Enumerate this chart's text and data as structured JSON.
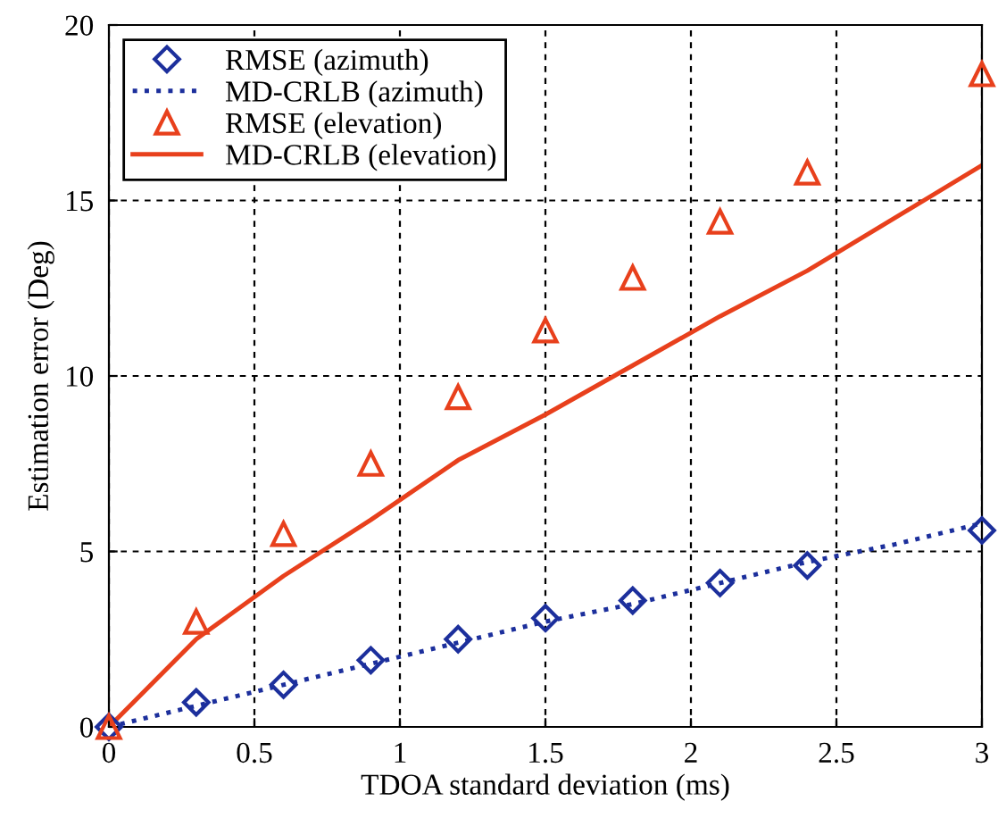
{
  "chart_data": {
    "type": "line",
    "xlabel": "TDOA standard deviation (ms)",
    "ylabel": "Estimation error (Deg)",
    "xlim": [
      0,
      3
    ],
    "ylim": [
      0,
      20
    ],
    "xticks": [
      0,
      0.5,
      1,
      1.5,
      2,
      2.5,
      3
    ],
    "yticks": [
      0,
      5,
      10,
      15,
      20
    ],
    "grid": true,
    "legend": "top left",
    "series": [
      {
        "name": "RMSE (azimuth)",
        "type": "scatter",
        "marker": "diamond",
        "color": "#1c2f9c",
        "x": [
          0,
          0.3,
          0.6,
          0.9,
          1.2,
          1.5,
          1.8,
          2.1,
          2.4,
          3
        ],
        "values": [
          0,
          0.7,
          1.2,
          1.9,
          2.5,
          3.1,
          3.6,
          4.1,
          4.6,
          5.6
        ]
      },
      {
        "name": "MD-CRLB (azimuth)",
        "line_style": "dotted",
        "color": "#1c2f9c",
        "x": [
          0,
          0.3,
          0.6,
          0.9,
          1.2,
          1.5,
          1.8,
          2.1,
          2.4,
          2.7,
          3
        ],
        "values": [
          0,
          0.6,
          1.2,
          1.8,
          2.4,
          3.0,
          3.5,
          4.1,
          4.7,
          5.2,
          5.8
        ]
      },
      {
        "name": "RMSE (elevation)",
        "type": "scatter",
        "marker": "triangle",
        "color": "#e8401c",
        "x": [
          0,
          0.3,
          0.6,
          0.9,
          1.2,
          1.5,
          1.8,
          2.1,
          2.4,
          3
        ],
        "values": [
          0,
          3.0,
          5.5,
          7.5,
          9.4,
          11.3,
          12.8,
          14.4,
          15.8,
          18.6
        ]
      },
      {
        "name": "MD-CRLB (elevation)",
        "line_style": "solid",
        "color": "#e8401c",
        "x": [
          0,
          0.3,
          0.6,
          0.9,
          1.2,
          1.5,
          1.8,
          2.1,
          2.4,
          2.7,
          3
        ],
        "values": [
          0,
          2.5,
          4.3,
          5.9,
          7.6,
          8.9,
          10.3,
          11.7,
          13.0,
          14.5,
          16.0
        ]
      }
    ]
  }
}
